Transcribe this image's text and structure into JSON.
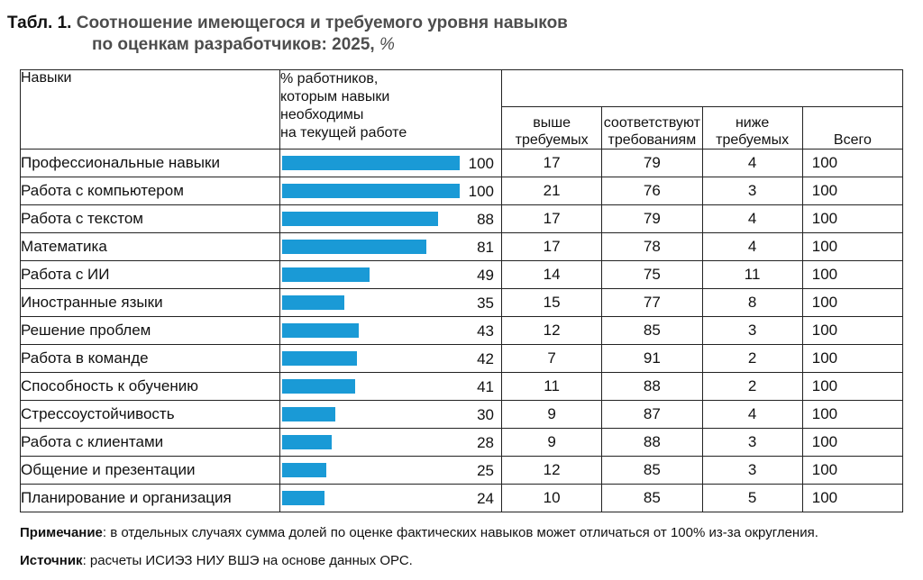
{
  "title": {
    "prefix": "Табл. 1.",
    "main": "Соотношение имеющегося и требуемого уровня навыков",
    "line2": "по оценкам разработчиков: 2025,",
    "unit": "%"
  },
  "headers": {
    "skills": "Навыки",
    "pct_lines": [
      "% работников,",
      "которым навыки",
      "необходимы",
      "на текущей работе"
    ],
    "above": [
      "выше",
      "требуемых"
    ],
    "match": [
      "соответствуют",
      "требованиям"
    ],
    "below": [
      "ниже",
      "требуемых"
    ],
    "total": "Всего"
  },
  "colors": {
    "bar": "#1a9ad6"
  },
  "chart_data": {
    "type": "table",
    "bar_column": "% работников, которым навыки необходимы на текущей работе",
    "bar_max": 100,
    "rows": [
      {
        "skill": "Профессиональные навыки",
        "pct": 100,
        "above": 17,
        "match": 79,
        "below": 4,
        "total": 100
      },
      {
        "skill": "Работа с компьютером",
        "pct": 100,
        "above": 21,
        "match": 76,
        "below": 3,
        "total": 100
      },
      {
        "skill": "Работа с текстом",
        "pct": 88,
        "above": 17,
        "match": 79,
        "below": 4,
        "total": 100
      },
      {
        "skill": "Математика",
        "pct": 81,
        "above": 17,
        "match": 78,
        "below": 4,
        "total": 100
      },
      {
        "skill": "Работа с ИИ",
        "pct": 49,
        "above": 14,
        "match": 75,
        "below": 11,
        "total": 100
      },
      {
        "skill": "Иностранные языки",
        "pct": 35,
        "above": 15,
        "match": 77,
        "below": 8,
        "total": 100
      },
      {
        "skill": "Решение проблем",
        "pct": 43,
        "above": 12,
        "match": 85,
        "below": 3,
        "total": 100
      },
      {
        "skill": "Работа в команде",
        "pct": 42,
        "above": 7,
        "match": 91,
        "below": 2,
        "total": 100
      },
      {
        "skill": "Способность к обучению",
        "pct": 41,
        "above": 11,
        "match": 88,
        "below": 2,
        "total": 100
      },
      {
        "skill": "Стрессоустойчивость",
        "pct": 30,
        "above": 9,
        "match": 87,
        "below": 4,
        "total": 100
      },
      {
        "skill": "Работа с клиентами",
        "pct": 28,
        "above": 9,
        "match": 88,
        "below": 3,
        "total": 100
      },
      {
        "skill": "Общение и презентации",
        "pct": 25,
        "above": 12,
        "match": 85,
        "below": 3,
        "total": 100
      },
      {
        "skill": "Планирование и организация",
        "pct": 24,
        "above": 10,
        "match": 85,
        "below": 5,
        "total": 100
      }
    ]
  },
  "note": {
    "label": "Примечание",
    "text": ": в отдельных случаях сумма долей по оценке фактических навыков может отличаться от 100% из-за округления."
  },
  "source": {
    "label": "Источник",
    "text": ": расчеты ИСИЭЗ НИУ ВШЭ на основе данных ОРС."
  }
}
